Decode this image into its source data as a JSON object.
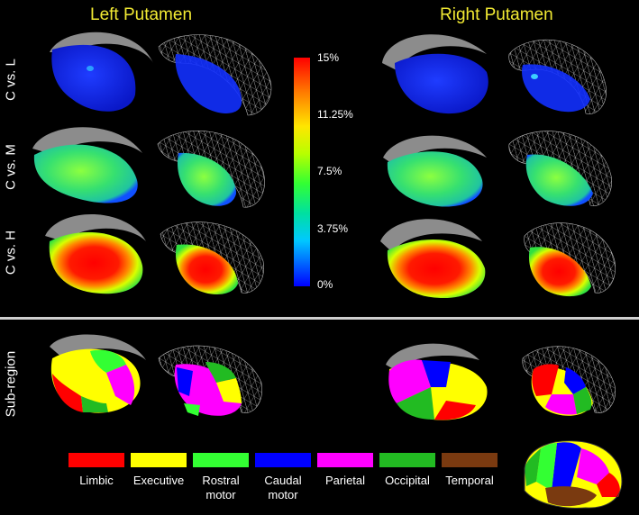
{
  "headers": {
    "left": "Left Putamen",
    "right": "Right Putamen"
  },
  "row_labels": [
    "C vs. L",
    "C vs. M",
    "C vs. H",
    "Sub-region"
  ],
  "colorbar": {
    "ticks": [
      "15%",
      "11.25%",
      "7.5%",
      "3.75%",
      "0%"
    ],
    "colors": [
      "#ff0000",
      "#ffe600",
      "#33ff33",
      "#00c8ff",
      "#0000ff"
    ]
  },
  "legend": [
    {
      "color": "#ff0000",
      "line1": "Limbic",
      "line2": ""
    },
    {
      "color": "#ffff00",
      "line1": "Executive",
      "line2": ""
    },
    {
      "color": "#33ff33",
      "line1": "Rostral",
      "line2": "motor"
    },
    {
      "color": "#0000ff",
      "line1": "Caudal",
      "line2": "motor"
    },
    {
      "color": "#ff00ff",
      "line1": "Parietal",
      "line2": ""
    },
    {
      "color": "#22bb22",
      "line1": "Occipital",
      "line2": ""
    },
    {
      "color": "#7a3a10",
      "line1": "Temporal",
      "line2": ""
    }
  ],
  "region_colors": {
    "limbic": "#ff0000",
    "executive": "#ffff00",
    "rostral_motor": "#33ff33",
    "caudal_motor": "#0000ff",
    "parietal": "#ff00ff",
    "occipital": "#22bb22",
    "temporal": "#7a3a10",
    "shell": "#8c8c8c",
    "wire": "#cfcfcf"
  },
  "icons": [
    "putamen-surface-render",
    "putamen-wireframe-render",
    "brain-lobe-icon"
  ]
}
